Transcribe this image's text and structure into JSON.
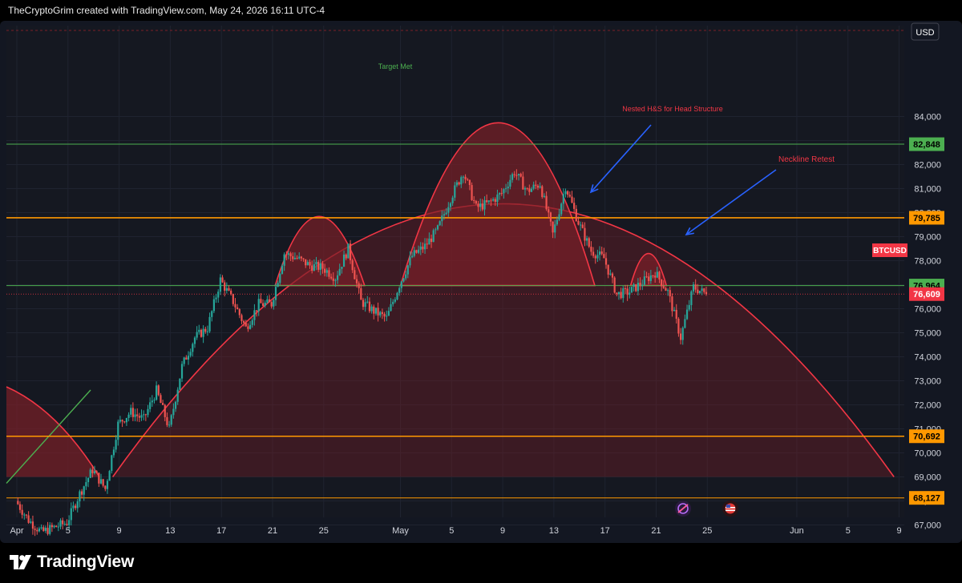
{
  "header": {
    "caption": "TheCryptoGrim created with TradingView.com, May 24, 2026 16:11 UTC-4"
  },
  "footer": {
    "brand": "TradingView"
  },
  "currency_button": "USD",
  "symbol": "BTCUSD",
  "colors": {
    "background": "#131722",
    "pane": "#151821",
    "grid": "#1f2330",
    "up_candle": "#26a69a",
    "down_candle": "#ef5350",
    "pattern_red": "#f23645",
    "pattern_fill": "#7a1f28",
    "support_orange": "#ff9800",
    "support_green": "#4caf50",
    "arrow_blue": "#2962ff"
  },
  "icons": [
    "tradingview-logo-icon",
    "crypto-event-icon",
    "us-flag-icon"
  ],
  "chart_data": {
    "type": "candlestick",
    "symbol": "BTCUSD",
    "title": "",
    "xlabel": "",
    "ylabel": "",
    "ylim": [
      66200,
      85000
    ],
    "yticks": [
      "84,000",
      "83,000",
      "82,000",
      "81,000",
      "80,000",
      "79,000",
      "78,000",
      "77,000",
      "76,000",
      "75,000",
      "74,000",
      "73,000",
      "72,000",
      "71,000",
      "70,000",
      "69,000",
      "68,000",
      "67,000"
    ],
    "xticks": [
      {
        "label": "Apr",
        "date": "2026-04-01"
      },
      {
        "label": "5",
        "date": "2026-04-05"
      },
      {
        "label": "9",
        "date": "2026-04-09"
      },
      {
        "label": "13",
        "date": "2026-04-13"
      },
      {
        "label": "17",
        "date": "2026-04-17"
      },
      {
        "label": "21",
        "date": "2026-04-21"
      },
      {
        "label": "25",
        "date": "2026-04-25"
      },
      {
        "label": "May",
        "date": "2026-05-01"
      },
      {
        "label": "5",
        "date": "2026-05-05"
      },
      {
        "label": "9",
        "date": "2026-05-09"
      },
      {
        "label": "13",
        "date": "2026-05-13"
      },
      {
        "label": "17",
        "date": "2026-05-17"
      },
      {
        "label": "21",
        "date": "2026-05-21"
      },
      {
        "label": "25",
        "date": "2026-05-25"
      },
      {
        "label": "Jun",
        "date": "2026-06-01"
      },
      {
        "label": "5",
        "date": "2026-06-05"
      },
      {
        "label": "9",
        "date": "2026-06-09"
      }
    ],
    "price_path": [
      [
        "2026-04-01",
        68000
      ],
      [
        "2026-04-02",
        67200
      ],
      [
        "2026-04-03",
        66700
      ],
      [
        "2026-04-04",
        66900
      ],
      [
        "2026-04-05",
        67100
      ],
      [
        "2026-04-06",
        68300
      ],
      [
        "2026-04-07",
        69300
      ],
      [
        "2026-04-08",
        68500
      ],
      [
        "2026-04-09",
        71200
      ],
      [
        "2026-04-10",
        71700
      ],
      [
        "2026-04-11",
        71400
      ],
      [
        "2026-04-12",
        72600
      ],
      [
        "2026-04-13",
        71000
      ],
      [
        "2026-04-14",
        73600
      ],
      [
        "2026-04-15",
        74800
      ],
      [
        "2026-04-16",
        75200
      ],
      [
        "2026-04-17",
        77200
      ],
      [
        "2026-04-18",
        76300
      ],
      [
        "2026-04-19",
        75200
      ],
      [
        "2026-04-20",
        76200
      ],
      [
        "2026-04-21",
        76200
      ],
      [
        "2026-04-22",
        78300
      ],
      [
        "2026-04-23",
        78100
      ],
      [
        "2026-04-24",
        77800
      ],
      [
        "2026-04-25",
        77700
      ],
      [
        "2026-04-26",
        77300
      ],
      [
        "2026-04-27",
        78500
      ],
      [
        "2026-04-28",
        76300
      ],
      [
        "2026-04-29",
        75900
      ],
      [
        "2026-04-30",
        75600
      ],
      [
        "2026-05-01",
        77000
      ],
      [
        "2026-05-02",
        78200
      ],
      [
        "2026-05-03",
        78600
      ],
      [
        "2026-05-04",
        79300
      ],
      [
        "2026-05-05",
        80600
      ],
      [
        "2026-05-06",
        81700
      ],
      [
        "2026-05-07",
        80200
      ],
      [
        "2026-05-08",
        80400
      ],
      [
        "2026-05-09",
        80800
      ],
      [
        "2026-05-10",
        81700
      ],
      [
        "2026-05-11",
        80900
      ],
      [
        "2026-05-12",
        81200
      ],
      [
        "2026-05-13",
        79100
      ],
      [
        "2026-05-14",
        81100
      ],
      [
        "2026-05-15",
        79600
      ],
      [
        "2026-05-16",
        78400
      ],
      [
        "2026-05-17",
        78100
      ],
      [
        "2026-05-18",
        76600
      ],
      [
        "2026-05-19",
        76700
      ],
      [
        "2026-05-20",
        77100
      ],
      [
        "2026-05-21",
        77500
      ],
      [
        "2026-05-22",
        76700
      ],
      [
        "2026-05-23",
        74800
      ],
      [
        "2026-05-24",
        76900
      ],
      [
        "2026-05-25",
        76609
      ]
    ],
    "horizontal_levels": [
      {
        "value": 82848,
        "label": "82,848",
        "color": "#4caf50"
      },
      {
        "value": 79785,
        "label": "79,785",
        "color": "#ff9800"
      },
      {
        "value": 76964,
        "label": "76,964",
        "color": "#4caf50"
      },
      {
        "value": 76609,
        "label": "76,609",
        "color": "#f23645",
        "current_price": true
      },
      {
        "value": 70692,
        "label": "70,692",
        "color": "#ff9800"
      },
      {
        "value": 68127,
        "label": "68,127",
        "color": "#ff9800"
      }
    ],
    "annotations": [
      {
        "text": "Target Met",
        "color": "#4caf50"
      },
      {
        "text": "Nested H&S for Head Structure",
        "color": "#f23645"
      },
      {
        "text": "Neckline Retest",
        "color": "#f23645"
      }
    ]
  }
}
